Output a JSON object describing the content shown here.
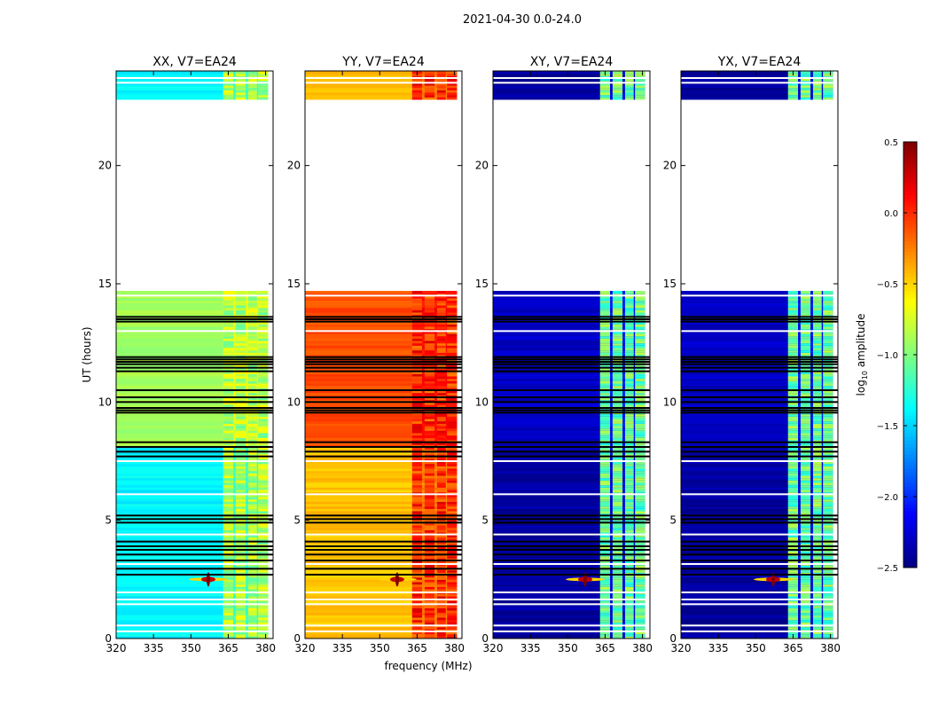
{
  "chart_data": {
    "type": "heatmap",
    "title": "2021-04-30 0.0-24.0",
    "xlabel": "frequency (MHz)",
    "ylabel": "UT (hours)",
    "xlim": [
      320,
      383
    ],
    "ylim": [
      0,
      24
    ],
    "xticks": [
      320,
      335,
      350,
      365,
      380
    ],
    "yticks": [
      0,
      5,
      10,
      15,
      20
    ],
    "colormap": "jet",
    "colorbar": {
      "label_prefix": "log",
      "label_sub": "10",
      "label_suffix": " amplitude",
      "range": [
        -2.5,
        0.5
      ],
      "ticks": [
        "0.5",
        "0.0",
        "−0.5",
        "−1.0",
        "−1.5",
        "−2.0",
        "−2.5"
      ],
      "tick_values": [
        0.5,
        0.0,
        -0.5,
        -1.0,
        -1.5,
        -2.0,
        -2.5
      ]
    },
    "no_data_hours": [
      14.65,
      22.8
    ],
    "rfi_bands_mhz": [
      [
        363,
        367
      ],
      [
        368,
        372
      ],
      [
        373,
        376.5
      ],
      [
        377,
        381
      ]
    ],
    "rfi_burst": {
      "freq_mhz": 357,
      "ut_hours": 2.5,
      "value": 0.5
    },
    "flagged_black_hours": [
      2.7,
      2.95,
      3.3,
      3.55,
      3.75,
      3.9,
      4.1,
      4.9,
      5.05,
      5.2,
      7.7,
      7.9,
      8.1,
      8.3,
      9.55,
      9.65,
      9.75,
      10.0,
      10.2,
      10.5,
      11.3,
      11.45,
      11.6,
      11.7,
      11.8,
      11.9,
      13.4,
      13.5,
      13.6
    ],
    "flagged_white_hours": [
      0.3,
      0.55,
      1.45,
      1.65,
      1.95,
      3.15,
      4.4,
      6.1,
      7.5,
      13.0,
      14.5,
      23.5,
      23.7
    ],
    "panels": [
      {
        "title": "XX, V7=EA24",
        "base_low": -1.4,
        "base_high": -0.9,
        "band": -0.85
      },
      {
        "title": "YY, V7=EA24",
        "base_low": -0.45,
        "base_high": -0.1,
        "band": 0.0
      },
      {
        "title": "XY, V7=EA24",
        "base_low": -2.4,
        "base_high": -2.3,
        "band": -1.05
      },
      {
        "title": "YX, V7=EA24",
        "base_low": -2.4,
        "base_high": -2.3,
        "band": -1.05
      }
    ]
  }
}
